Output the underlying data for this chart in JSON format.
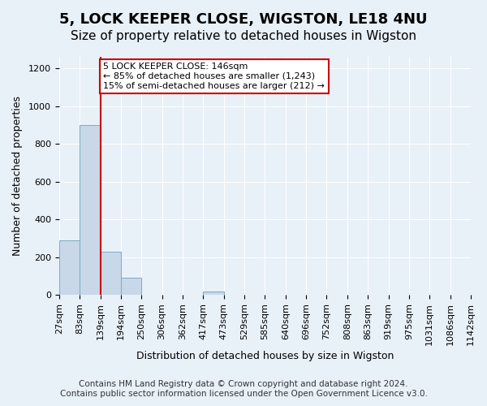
{
  "title1": "5, LOCK KEEPER CLOSE, WIGSTON, LE18 4NU",
  "title2": "Size of property relative to detached houses in Wigston",
  "xlabel": "Distribution of detached houses by size in Wigston",
  "ylabel": "Number of detached properties",
  "bin_labels": [
    "27sqm",
    "83sqm",
    "139sqm",
    "194sqm",
    "250sqm",
    "306sqm",
    "362sqm",
    "417sqm",
    "473sqm",
    "529sqm",
    "585sqm",
    "640sqm",
    "696sqm",
    "752sqm",
    "808sqm",
    "863sqm",
    "919sqm",
    "975sqm",
    "1031sqm",
    "1086sqm",
    "1142sqm"
  ],
  "bar_heights": [
    290,
    900,
    230,
    90,
    0,
    0,
    0,
    18,
    0,
    0,
    0,
    0,
    0,
    0,
    0,
    0,
    0,
    0,
    0,
    0
  ],
  "bar_color": "#c8d8e8",
  "bar_edge_color": "#7aaac8",
  "property_line_x": 2,
  "property_sqm": 146,
  "annotation_text": "5 LOCK KEEPER CLOSE: 146sqm\n← 85% of detached houses are smaller (1,243)\n15% of semi-detached houses are larger (212) →",
  "annotation_box_color": "#ffffff",
  "annotation_box_edge_color": "#cc0000",
  "ylim": [
    0,
    1260
  ],
  "yticks": [
    0,
    200,
    400,
    600,
    800,
    1000,
    1200
  ],
  "footer_line1": "Contains HM Land Registry data © Crown copyright and database right 2024.",
  "footer_line2": "Contains public sector information licensed under the Open Government Licence v3.0.",
  "bg_color": "#e8f0f8",
  "plot_bg_color": "#e8f0f8",
  "grid_color": "#ffffff",
  "title1_fontsize": 13,
  "title2_fontsize": 11,
  "tick_fontsize": 8,
  "label_fontsize": 9,
  "footer_fontsize": 7.5
}
